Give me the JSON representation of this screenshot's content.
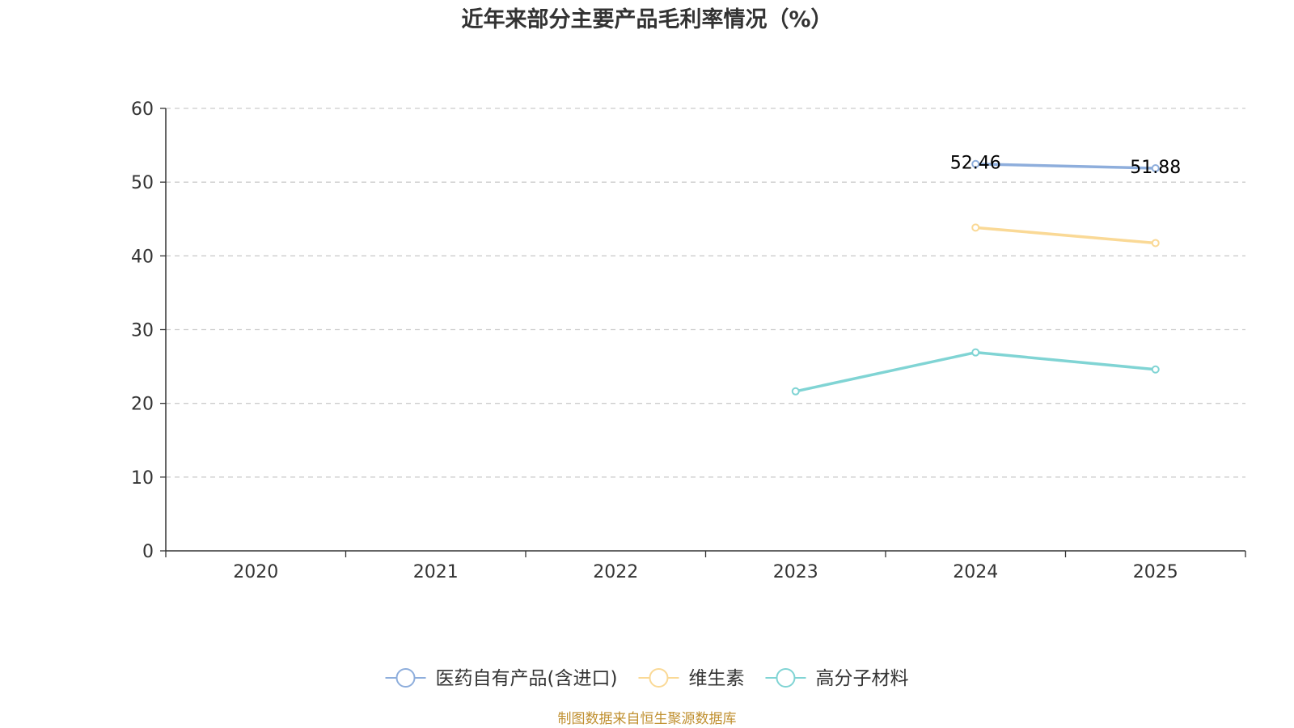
{
  "chart_data": {
    "type": "line",
    "title": "近年来部分主要产品毛利率情况（%）",
    "categories": [
      "2020",
      "2021",
      "2022",
      "2023",
      "2024",
      "2025"
    ],
    "ylim": [
      0,
      60
    ],
    "yticks": [
      0,
      10,
      20,
      30,
      40,
      50,
      60
    ],
    "grid": "horizontal-dashed",
    "legend_position": "bottom-center",
    "series": [
      {
        "name": "医药自有产品(含进口)",
        "color": "#8eaedc",
        "values": [
          null,
          null,
          null,
          null,
          52.46,
          51.88
        ],
        "labels_shown": [
          false,
          false,
          false,
          false,
          true,
          true
        ]
      },
      {
        "name": "维生素",
        "color": "#fad996",
        "values": [
          null,
          null,
          null,
          null,
          43.84,
          41.74
        ],
        "labels_shown": [
          false,
          false,
          false,
          false,
          false,
          false
        ]
      },
      {
        "name": "高分子材料",
        "color": "#80d4d4",
        "values": [
          null,
          null,
          null,
          21.63,
          26.91,
          24.6
        ],
        "labels_shown": [
          false,
          false,
          false,
          false,
          false,
          false
        ]
      }
    ],
    "source": "制图数据来自恒生聚源数据库",
    "source_color": "#c09030"
  }
}
